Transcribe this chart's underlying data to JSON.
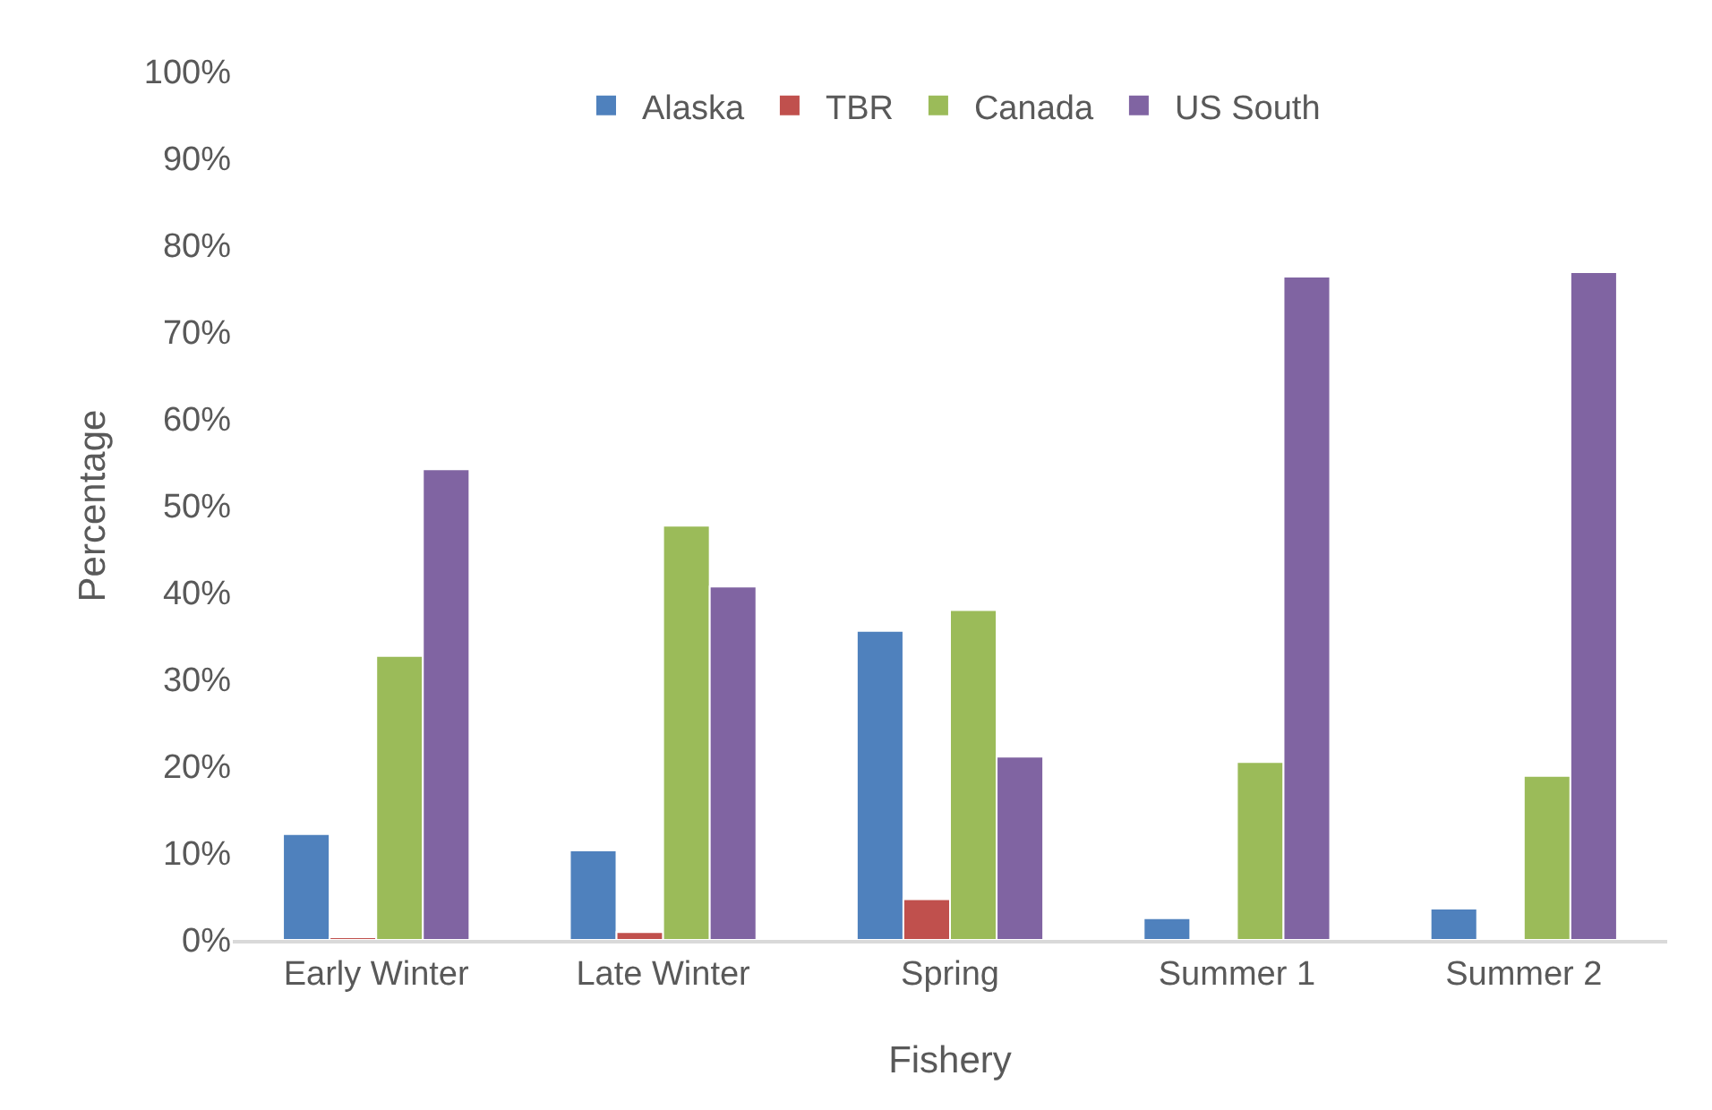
{
  "chart_data": {
    "type": "bar",
    "xlabel": "Fishery",
    "ylabel": "Percentage",
    "categories": [
      "Early Winter",
      "Late Winter",
      "Spring",
      "Summer 1",
      "Summer 2"
    ],
    "series": [
      {
        "name": "Alaska",
        "color": "#4f81bd",
        "values": [
          12.2,
          10.3,
          35.6,
          2.5,
          3.6
        ]
      },
      {
        "name": "TBR",
        "color": "#c0504d",
        "values": [
          0.3,
          0.9,
          4.7,
          null,
          null
        ]
      },
      {
        "name": "Canada",
        "color": "#9bbb59",
        "values": [
          32.7,
          47.7,
          38.0,
          20.5,
          18.9
        ]
      },
      {
        "name": "US South",
        "color": "#8064a2",
        "values": [
          54.2,
          40.7,
          21.1,
          76.4,
          76.9
        ]
      }
    ],
    "ylim": [
      0,
      100
    ],
    "yticks": [
      {
        "value": 0,
        "label": "0%"
      },
      {
        "value": 10,
        "label": "10%"
      },
      {
        "value": 20,
        "label": "20%"
      },
      {
        "value": 30,
        "label": "30%"
      },
      {
        "value": 40,
        "label": "40%"
      },
      {
        "value": 50,
        "label": "50%"
      },
      {
        "value": 60,
        "label": "60%"
      },
      {
        "value": 70,
        "label": "70%"
      },
      {
        "value": 80,
        "label": "80%"
      },
      {
        "value": 90,
        "label": "90%"
      },
      {
        "value": 100,
        "label": "100%"
      }
    ],
    "grid": false,
    "legend": "top"
  }
}
